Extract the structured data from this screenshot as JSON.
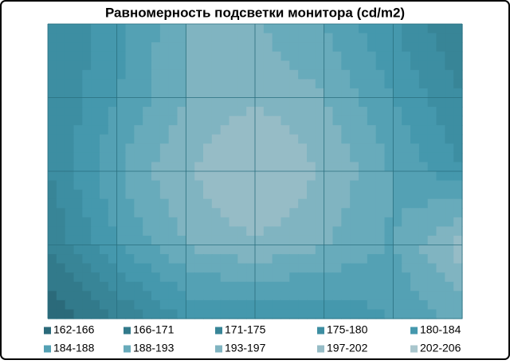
{
  "chart_data": {
    "type": "contour",
    "title": "Равномерность  подсветки  монитора  (cd/m2)",
    "z": [
      [
        175,
        182,
        193,
        193,
        188,
        180,
        171
      ],
      [
        175,
        184,
        193,
        197,
        193,
        184,
        175
      ],
      [
        175,
        188,
        197,
        202,
        197,
        188,
        180
      ],
      [
        171,
        184,
        193,
        197,
        193,
        188,
        200
      ],
      [
        162,
        171,
        180,
        180,
        180,
        184,
        190
      ]
    ],
    "levels": [
      162,
      166.4,
      170.8,
      175.2,
      179.6,
      184,
      188.4,
      192.8,
      197.2,
      201.6,
      206
    ],
    "bands": [
      {
        "label": "162-166",
        "color": "#2b6a7a"
      },
      {
        "label": "166-171",
        "color": "#327a8b"
      },
      {
        "label": "171-175",
        "color": "#388597"
      },
      {
        "label": "175-180",
        "color": "#3d8ea2"
      },
      {
        "label": "180-184",
        "color": "#4598ad"
      },
      {
        "label": "184-188",
        "color": "#54a1b4"
      },
      {
        "label": "188-193",
        "color": "#68abbb"
      },
      {
        "label": "193-197",
        "color": "#80b4c1"
      },
      {
        "label": "197-202",
        "color": "#96bcc6"
      },
      {
        "label": "202-206",
        "color": "#a9c6cd"
      }
    ]
  }
}
